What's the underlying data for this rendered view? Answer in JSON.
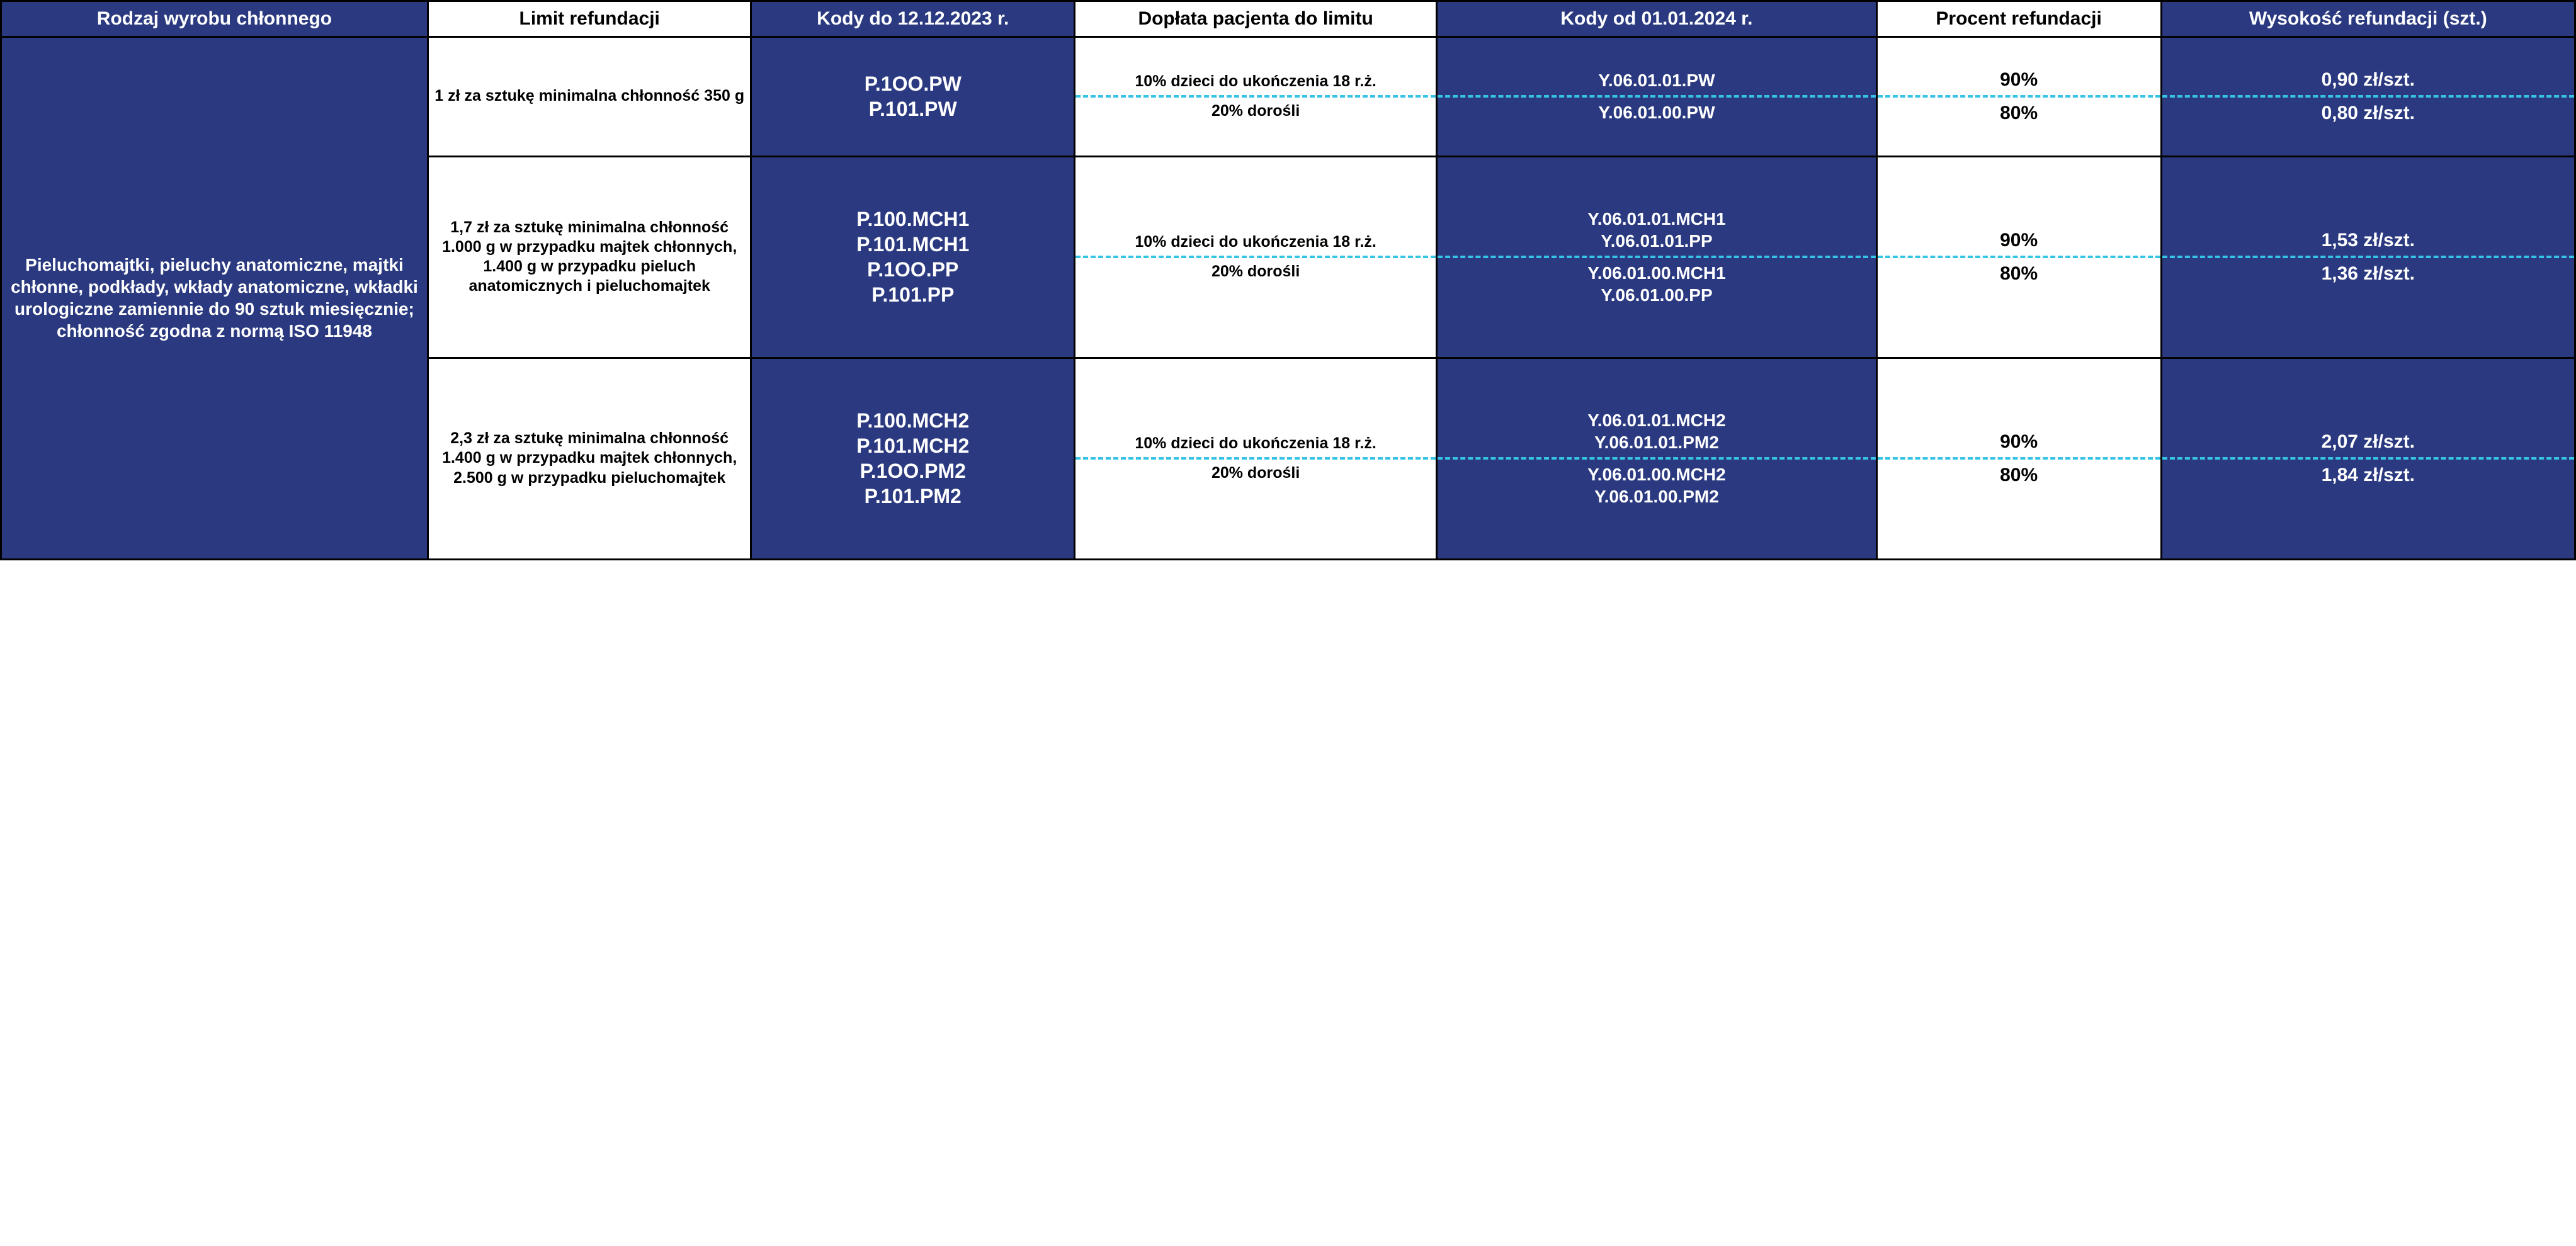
{
  "colors": {
    "navy": "#2b3a80",
    "white": "#ffffff",
    "black": "#000000",
    "dashed": "#36c4e6"
  },
  "typography": {
    "family": "Segoe UI, Arial, sans-serif",
    "header_fontsize": 30,
    "body_fontsize": 26,
    "weight": 700
  },
  "header": {
    "c1": "Rodzaj wyrobu chłonnego",
    "c2": "Limit refundacji",
    "c3": "Kody do 12.12.2023 r.",
    "c4": "Dopłata pacjenta do limitu",
    "c5": "Kody od 01.01.2024 r.",
    "c6": "Procent refundacji",
    "c7": "Wysokość refundacji (szt.)"
  },
  "product_desc": "Pieluchomajtki, pieluchy anatomiczne, majtki chłonne, podkłady, wkłady anatomiczne, wkładki urologiczne zamiennie do 90 sztuk miesięcznie; chłonność zgodna z normą ISO 11948",
  "rows": [
    {
      "limit": "1 zł za sztukę minimalna chłonność 350 g",
      "codes_old": "P.1OO.PW\nP.101.PW",
      "sub": [
        {
          "doplata": "10% dzieci do ukończenia 18 r.ż.",
          "codes_new": "Y.06.01.01.PW",
          "procent": "90%",
          "wys": "0,90 zł/szt."
        },
        {
          "doplata": "20% dorośli",
          "codes_new": "Y.06.01.00.PW",
          "procent": "80%",
          "wys": "0,80 zł/szt."
        }
      ]
    },
    {
      "limit": "1,7 zł za sztukę minimalna chłonność 1.000 g w przypadku majtek chłonnych, 1.400 g w przypadku pieluch anatomicznych i pieluchomajtek",
      "codes_old": "P.100.MCH1\nP.101.MCH1\nP.1OO.PP\nP.101.PP",
      "sub": [
        {
          "doplata": "10% dzieci do ukończenia 18 r.ż.",
          "codes_new": "Y.06.01.01.MCH1\nY.06.01.01.PP",
          "procent": "90%",
          "wys": "1,53 zł/szt."
        },
        {
          "doplata": "20% dorośli",
          "codes_new": "Y.06.01.00.MCH1\nY.06.01.00.PP",
          "procent": "80%",
          "wys": "1,36 zł/szt."
        }
      ]
    },
    {
      "limit": "2,3 zł za sztukę minimalna chłonność 1.400 g w przypadku majtek chłonnych, 2.500 g w przypadku pieluchomajtek",
      "codes_old": "P.100.MCH2\nP.101.MCH2\nP.1OO.PM2\nP.101.PM2",
      "sub": [
        {
          "doplata": "10% dzieci do ukończenia 18 r.ż.",
          "codes_new": "Y.06.01.01.MCH2\nY.06.01.01.PM2",
          "procent": "90%",
          "wys": "2,07 zł/szt."
        },
        {
          "doplata": "20% dorośli",
          "codes_new": "Y.06.01.00.MCH2\nY.06.01.00.PM2",
          "procent": "80%",
          "wys": "1,84 zł/szt."
        }
      ]
    }
  ]
}
